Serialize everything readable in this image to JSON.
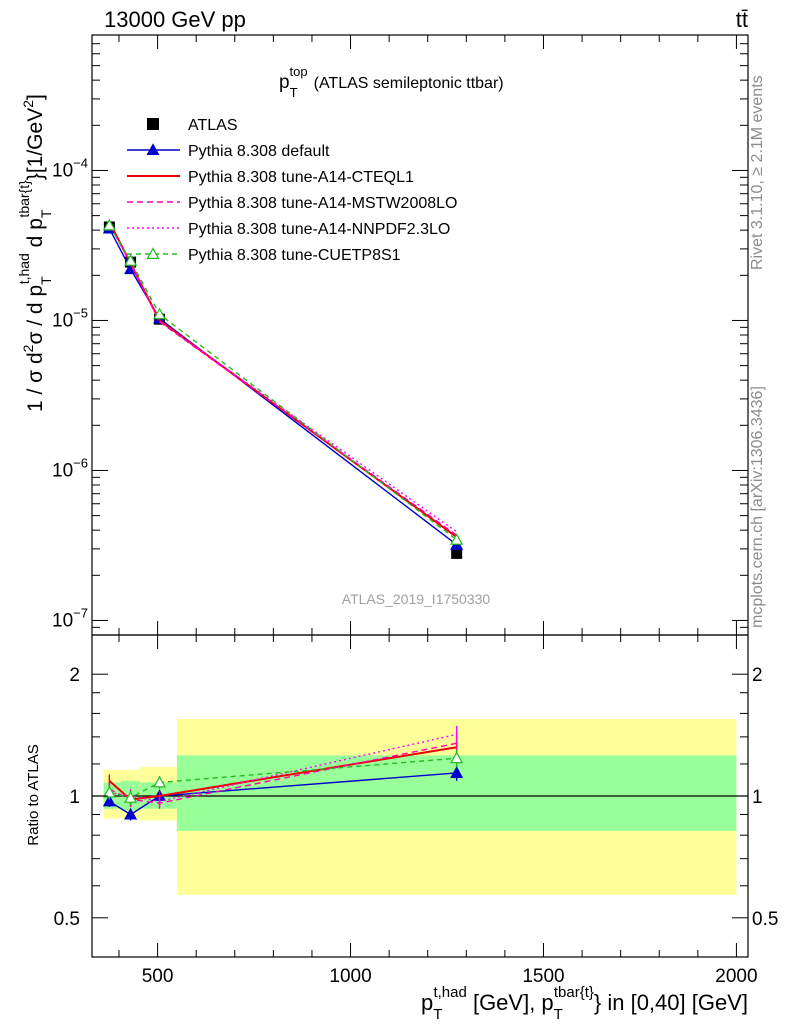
{
  "header": {
    "left": "13000 GeV pp",
    "right": "tt̄"
  },
  "side_labels": {
    "rivet": "Rivet 3.1.10, ≥ 2.1M events",
    "mcplots": "mcplots.cern.ch [arXiv:1306.3436]"
  },
  "chart_data": [
    {
      "type": "line",
      "panel": "main",
      "title": "p_T^top (ATLAS semileptonic ttbar)",
      "title_parts": {
        "p": "p",
        "sub": "T",
        "sup": "top",
        "rest": "(ATLAS semileptonic ttbar)"
      },
      "ylabel": "1 / σ d²σ / d p_T^{t,had} d p_T^{tbar{t}} [1/GeV²]",
      "ylabel_parts": {
        "a": "1 / σ d",
        "a_sup": "2",
        "b": "σ / d p",
        "b_sub": "T",
        "b_sup": "t,had",
        "c": " d p",
        "c_sub": "T",
        "c_sup": "tbar{t}",
        "d": "}[1/GeV",
        "d_sup": "2",
        "e": "]"
      },
      "watermark": "ATLAS_2019_I1750330",
      "yscale": "log",
      "xlim": [
        330,
        2030
      ],
      "ylim": [
        8e-08,
        0.0008
      ],
      "ytick_labels": [
        {
          "value": 1e-07,
          "base": "10",
          "exp": "−7"
        },
        {
          "value": 1e-06,
          "base": "10",
          "exp": "−6"
        },
        {
          "value": 1e-05,
          "base": "10",
          "exp": "−5"
        },
        {
          "value": 0.0001,
          "base": "10",
          "exp": "−4"
        }
      ],
      "legend_position": "upper-left",
      "series": [
        {
          "name": "ATLAS",
          "color": "#000000",
          "style": "marker-square",
          "x": [
            375,
            430,
            505,
            1275
          ],
          "y": [
            4.2e-05,
            2.45e-05,
            1.02e-05,
            2.8e-07
          ]
        },
        {
          "name": "Pythia 8.308 default",
          "color": "#0000cc",
          "style": "solid-triangle",
          "x": [
            375,
            430,
            505,
            1275
          ],
          "y": [
            4.1e-05,
            2.2e-05,
            1.03e-05,
            3.2e-07
          ]
        },
        {
          "name": "Pythia 8.308 tune-A14-CTEQL1",
          "color": "#ee0000",
          "style": "solid",
          "x": [
            375,
            430,
            505,
            1275
          ],
          "y": [
            4.55e-05,
            2.4e-05,
            1e-05,
            3.6e-07
          ]
        },
        {
          "name": "Pythia 8.308 tune-A14-MSTW2008LO",
          "color": "#ff00aa",
          "style": "dashed",
          "x": [
            375,
            430,
            505,
            1275
          ],
          "y": [
            4.4e-05,
            2.4e-05,
            9.8e-06,
            3.7e-07
          ]
        },
        {
          "name": "Pythia 8.308 tune-A14-NNPDF2.3LO",
          "color": "#ff00ff",
          "style": "dotted",
          "x": [
            375,
            430,
            505,
            1275
          ],
          "y": [
            4.35e-05,
            2.45e-05,
            9.9e-06,
            3.9e-07
          ]
        },
        {
          "name": "Pythia 8.308 tune-CUETP8S1",
          "color": "#22bb22",
          "style": "dashed-open-triangle",
          "x": [
            375,
            430,
            505,
            1275
          ],
          "y": [
            4.3e-05,
            2.5e-05,
            1.1e-05,
            3.45e-07
          ]
        }
      ]
    },
    {
      "type": "line",
      "panel": "ratio",
      "ylabel": "Ratio to ATLAS",
      "xlabel": "p_T^{t,had} [GeV], p_T^{tbar{t}} in [0,40] [GeV]",
      "xlabel_parts": {
        "a": "p",
        "a_sub": "T",
        "a_sup": "t,had",
        "b": " [GeV], p",
        "b_sub": "T",
        "b_sup": "tbar{t}",
        "c": "} in [0,40] [GeV]"
      },
      "yscale": "log",
      "xlim": [
        330,
        2030
      ],
      "ylim": [
        0.4,
        2.5
      ],
      "reference_line": 1,
      "xtick_labels": [
        "500",
        "1000",
        "1500",
        "2000"
      ],
      "xticks": [
        500,
        1000,
        1500,
        2000
      ],
      "ytick_labels": [
        "0.5",
        "1",
        "2"
      ],
      "yticks": [
        0.5,
        1,
        2
      ],
      "bands": {
        "x_edges": [
          360,
          405,
          455,
          550,
          2000
        ],
        "stat_lo": [
          0.93,
          0.92,
          0.93,
          0.82
        ],
        "stat_hi": [
          1.08,
          1.09,
          1.08,
          1.26
        ],
        "total_lo": [
          0.88,
          0.88,
          0.87,
          0.57
        ],
        "total_hi": [
          1.16,
          1.16,
          1.18,
          1.55
        ]
      },
      "series": [
        {
          "name": "Pythia 8.308 default",
          "color": "#0000cc",
          "style": "solid-triangle",
          "x": [
            375,
            430,
            505,
            1275
          ],
          "y": [
            0.97,
            0.9,
            1.0,
            1.14
          ],
          "err": [
            0.03,
            0.03,
            0.03,
            0.05
          ]
        },
        {
          "name": "Pythia 8.308 tune-A14-CTEQL1",
          "color": "#ee0000",
          "style": "solid",
          "x": [
            375,
            430,
            505,
            1275
          ],
          "y": [
            1.09,
            0.98,
            1.0,
            1.32
          ],
          "err": [
            0.04,
            0.04,
            0.03,
            0.07
          ]
        },
        {
          "name": "Pythia 8.308 tune-A14-MSTW2008LO",
          "color": "#ff00aa",
          "style": "dashed",
          "x": [
            375,
            430,
            505,
            1275
          ],
          "y": [
            1.04,
            0.98,
            0.96,
            1.35
          ],
          "err": [
            0.04,
            0.04,
            0.03,
            0.07
          ]
        },
        {
          "name": "Pythia 8.308 tune-A14-NNPDF2.3LO",
          "color": "#ff00ff",
          "style": "dotted",
          "x": [
            375,
            430,
            505,
            1275
          ],
          "y": [
            1.02,
            1.0,
            0.97,
            1.42
          ],
          "err": [
            0.04,
            0.04,
            0.03,
            0.07
          ]
        },
        {
          "name": "Pythia 8.308 tune-CUETP8S1",
          "color": "#22bb22",
          "style": "dashed-open-triangle",
          "x": [
            375,
            430,
            505,
            1275
          ],
          "y": [
            1.02,
            0.99,
            1.08,
            1.24
          ],
          "err": [
            0.04,
            0.04,
            0.04,
            0.06
          ]
        }
      ]
    }
  ]
}
